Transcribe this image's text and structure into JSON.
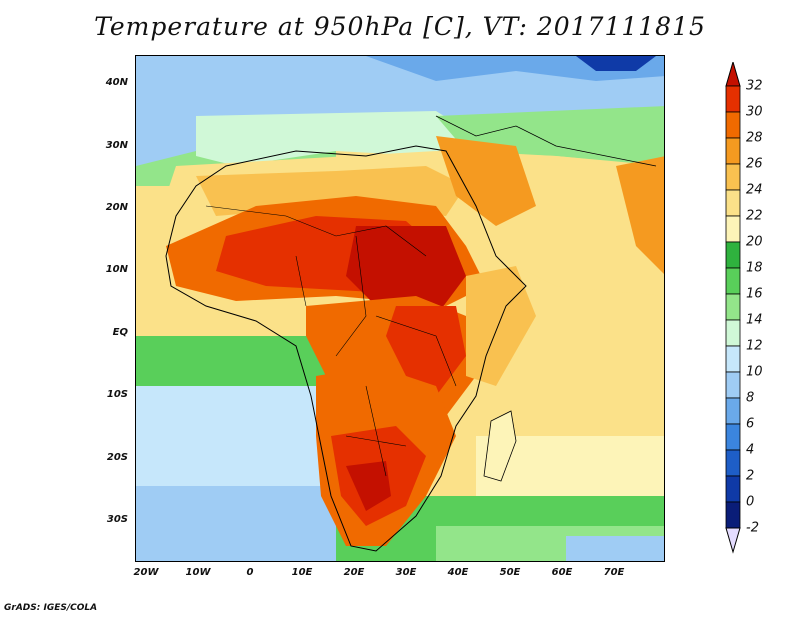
{
  "title": "Temperature at 950hPa [C], VT: 2017111815",
  "credit": "GrADS: IGES/COLA",
  "map": {
    "lat_labels": [
      "40N",
      "30N",
      "20N",
      "10N",
      "EQ",
      "10S",
      "20S",
      "30S"
    ],
    "lon_labels": [
      "20W",
      "10W",
      "0",
      "10E",
      "20E",
      "30E",
      "40E",
      "50E",
      "60E",
      "70E"
    ]
  },
  "colorbar": {
    "labels": [
      "32",
      "30",
      "28",
      "26",
      "24",
      "22",
      "20",
      "18",
      "16",
      "14",
      "12",
      "10",
      "8",
      "6",
      "4",
      "2",
      "0",
      "-2"
    ],
    "colors": [
      "#c41000",
      "#e53000",
      "#f06a00",
      "#f59a20",
      "#f9c150",
      "#fbe189",
      "#fdf4b8",
      "#2fb23e",
      "#59cf5a",
      "#93e58a",
      "#d0f8d7",
      "#c6e7fb",
      "#9fccf4",
      "#6aa9ea",
      "#3b85de",
      "#1e5ec7",
      "#0f3aa7",
      "#0a1d78",
      "#e4dcff"
    ]
  }
}
